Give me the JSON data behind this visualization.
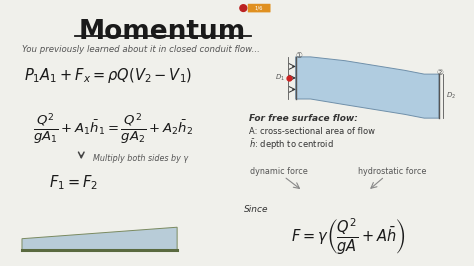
{
  "title": "Momentum",
  "bg_color": "#f0f0eb",
  "title_color": "#1a1a1a",
  "text_color": "#333333",
  "subtitle": "You previously learned about it in closed conduit flow...",
  "free_surface_title": "For free surface flow:",
  "free_surface_1": "A: cross-sectional area of flow",
  "free_surface_2": "$\\bar{h}$: depth to centroid",
  "since_text": "Since",
  "dynamic_force": "dynamic force",
  "hydrostatic_force": "hydrostatic force",
  "multiply_text": "Multiply both sides by γ"
}
